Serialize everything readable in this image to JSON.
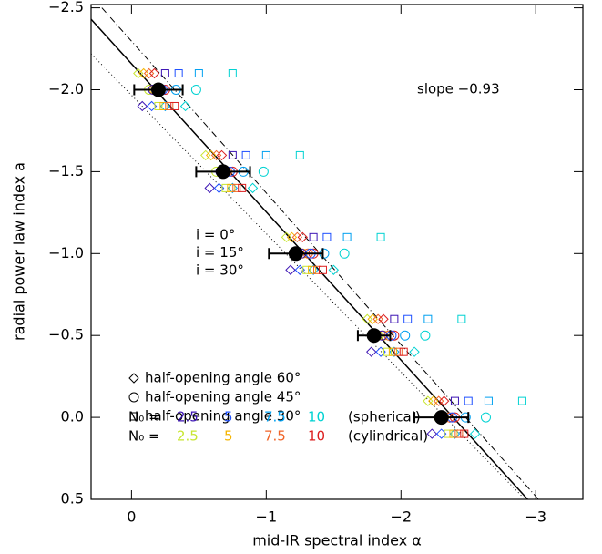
{
  "chart_data": {
    "type": "scatter",
    "xlabel": "mid-IR spectral index α",
    "ylabel": "radial power law index a",
    "xlim": [
      0.3,
      -3.35
    ],
    "ylim": [
      0.5,
      -2.52
    ],
    "xticks": [
      0,
      {
        "value": -1,
        "label": "−1"
      },
      {
        "value": -2,
        "label": "−2"
      },
      {
        "value": -3,
        "label": "−3"
      }
    ],
    "yticks": [
      {
        "value": 0.5,
        "label": "0.5"
      },
      {
        "value": 0,
        "label": "0.0"
      },
      {
        "value": -0.5,
        "label": "−0.5"
      },
      {
        "value": -1,
        "label": "−1.0"
      },
      {
        "value": -1.5,
        "label": "−1.5"
      },
      {
        "value": -2,
        "label": "−2.0"
      },
      {
        "value": -2.5,
        "label": "−2.5"
      }
    ],
    "series": [
      {
        "marker": "diamond",
        "color": "#c8e632",
        "x": [
          -0.05,
          -0.55,
          -1.15,
          -1.75,
          -2.2
        ],
        "values": [
          -2.1,
          -1.6,
          -1.1,
          -0.6,
          -0.1
        ]
      },
      {
        "marker": "diamond",
        "color": "#f5b400",
        "x": [
          -0.09,
          -0.59,
          -1.19,
          -1.79,
          -2.24
        ],
        "values": [
          -2.1,
          -1.6,
          -1.1,
          -0.6,
          -0.1
        ]
      },
      {
        "marker": "diamond",
        "color": "#f06428",
        "x": [
          -0.13,
          -0.63,
          -1.23,
          -1.83,
          -2.28
        ],
        "values": [
          -2.1,
          -1.6,
          -1.1,
          -0.6,
          -0.1
        ]
      },
      {
        "marker": "diamond",
        "color": "#dc1e1e",
        "x": [
          -0.17,
          -0.67,
          -1.27,
          -1.87,
          -2.32
        ],
        "values": [
          -2.1,
          -1.6,
          -1.1,
          -0.6,
          -0.1
        ]
      },
      {
        "marker": "diamond",
        "color": "#3c14b4",
        "x": [
          -0.08,
          -0.58,
          -1.18,
          -1.78,
          -2.23
        ],
        "values": [
          -1.9,
          -1.4,
          -0.9,
          -0.4,
          0.1
        ]
      },
      {
        "marker": "diamond",
        "color": "#1e50ff",
        "x": [
          -0.15,
          -0.65,
          -1.25,
          -1.85,
          -2.3
        ],
        "values": [
          -1.9,
          -1.4,
          -0.9,
          -0.4,
          0.1
        ]
      },
      {
        "marker": "diamond",
        "color": "#00a0f0",
        "x": [
          -0.25,
          -0.75,
          -1.35,
          -1.95,
          -2.4
        ],
        "values": [
          -1.9,
          -1.4,
          -0.9,
          -0.4,
          0.1
        ]
      },
      {
        "marker": "diamond",
        "color": "#00d2d2",
        "x": [
          -0.4,
          -0.9,
          -1.5,
          -2.1,
          -2.55
        ],
        "values": [
          -1.9,
          -1.4,
          -0.9,
          -0.4,
          0.1
        ]
      },
      {
        "marker": "circle",
        "color": "#c8e632",
        "x": [
          -0.13,
          -0.63,
          -1.23,
          -1.83,
          -2.28
        ],
        "values": [
          -2,
          -1.5,
          -1,
          -0.5,
          0
        ]
      },
      {
        "marker": "circle",
        "color": "#f5b400",
        "x": [
          -0.17,
          -0.67,
          -1.27,
          -1.87,
          -2.32
        ],
        "values": [
          -2,
          -1.5,
          -1,
          -0.5,
          0
        ]
      },
      {
        "marker": "circle",
        "color": "#f06428",
        "x": [
          -0.21,
          -0.71,
          -1.31,
          -1.91,
          -2.36
        ],
        "values": [
          -2,
          -1.5,
          -1,
          -0.5,
          0
        ]
      },
      {
        "marker": "circle",
        "color": "#dc1e1e",
        "x": [
          -0.25,
          -0.75,
          -1.35,
          -1.95,
          -2.4
        ],
        "values": [
          -2,
          -1.5,
          -1,
          -0.5,
          0
        ]
      },
      {
        "marker": "circle",
        "color": "#3c14b4",
        "x": [
          -0.16,
          -0.66,
          -1.26,
          -1.86,
          -2.31
        ],
        "values": [
          -2,
          -1.5,
          -1,
          -0.5,
          0
        ]
      },
      {
        "marker": "circle",
        "color": "#1e50ff",
        "x": [
          -0.23,
          -0.73,
          -1.33,
          -1.93,
          -2.38
        ],
        "values": [
          -2,
          -1.5,
          -1,
          -0.5,
          0
        ]
      },
      {
        "marker": "circle",
        "color": "#00a0f0",
        "x": [
          -0.33,
          -0.83,
          -1.43,
          -2.03,
          -2.48
        ],
        "values": [
          -2,
          -1.5,
          -1,
          -0.5,
          0
        ]
      },
      {
        "marker": "circle",
        "color": "#00d2d2",
        "x": [
          -0.48,
          -0.98,
          -1.58,
          -2.18,
          -2.63
        ],
        "values": [
          -2,
          -1.5,
          -1,
          -0.5,
          0
        ]
      },
      {
        "marker": "square",
        "color": "#c8e632",
        "x": [
          -0.2,
          -0.7,
          -1.3,
          -1.9,
          -2.35
        ],
        "values": [
          -1.9,
          -1.4,
          -0.9,
          -0.4,
          0.1
        ]
      },
      {
        "marker": "square",
        "color": "#f5b400",
        "x": [
          -0.24,
          -0.74,
          -1.34,
          -1.94,
          -2.39
        ],
        "values": [
          -1.9,
          -1.4,
          -0.9,
          -0.4,
          0.1
        ]
      },
      {
        "marker": "square",
        "color": "#f06428",
        "x": [
          -0.28,
          -0.78,
          -1.38,
          -1.98,
          -2.43
        ],
        "values": [
          -1.9,
          -1.4,
          -0.9,
          -0.4,
          0.1
        ]
      },
      {
        "marker": "square",
        "color": "#dc1e1e",
        "x": [
          -0.32,
          -0.82,
          -1.42,
          -2.02,
          -2.47
        ],
        "values": [
          -1.9,
          -1.4,
          -0.9,
          -0.4,
          0.1
        ]
      },
      {
        "marker": "square",
        "color": "#3c14b4",
        "x": [
          -0.25,
          -0.75,
          -1.35,
          -1.95,
          -2.4
        ],
        "values": [
          -2.1,
          -1.6,
          -1.1,
          -0.6,
          -0.1
        ]
      },
      {
        "marker": "square",
        "color": "#1e50ff",
        "x": [
          -0.35,
          -0.85,
          -1.45,
          -2.05,
          -2.5
        ],
        "values": [
          -2.1,
          -1.6,
          -1.1,
          -0.6,
          -0.1
        ]
      },
      {
        "marker": "square",
        "color": "#00a0f0",
        "x": [
          -0.5,
          -1.0,
          -1.6,
          -2.2,
          -2.65
        ],
        "values": [
          -2.1,
          -1.6,
          -1.1,
          -0.6,
          -0.1
        ]
      },
      {
        "marker": "square",
        "color": "#00d2d2",
        "x": [
          -0.75,
          -1.25,
          -1.85,
          -2.45,
          -2.9
        ],
        "values": [
          -2.1,
          -1.6,
          -1.1,
          -0.6,
          -0.1
        ]
      }
    ],
    "means": {
      "color": "#000000",
      "x": [
        -0.2,
        -0.68,
        -1.22,
        -1.8,
        -2.3
      ],
      "values": [
        -2,
        -1.5,
        -1,
        -0.5,
        0
      ],
      "xerr": [
        0.18,
        0.2,
        0.2,
        0.12,
        0.2
      ]
    },
    "lines": [
      {
        "style": "solid",
        "x": [
          0.3,
          -2.94
        ],
        "values": [
          -2.43,
          0.5
        ]
      },
      {
        "style": "dashdot",
        "x": [
          0.22,
          -3.02
        ],
        "values": [
          -2.5,
          0.5
        ]
      },
      {
        "style": "dotted",
        "x": [
          0.3,
          -2.92
        ],
        "values": [
          -2.22,
          0.5
        ]
      }
    ],
    "annotation": "slope −0.93",
    "inclinations": [
      "i = 0°",
      "i = 15°",
      "i = 30°"
    ],
    "legend": {
      "markers": [
        {
          "marker": "diamond",
          "label": "half-opening angle 60°"
        },
        {
          "marker": "circle",
          "label": "half-opening angle 45°"
        },
        {
          "marker": "square",
          "label": "half-opening angle 30°"
        }
      ],
      "n0_label": "N₀ =",
      "spherical": {
        "labels": [
          "2.5",
          "5",
          "7.5",
          "10"
        ],
        "name": "(spherical)"
      },
      "cylindrical": {
        "labels": [
          "2.5",
          "5",
          "7.5",
          "10"
        ],
        "name": "(cylindrical)"
      }
    }
  }
}
